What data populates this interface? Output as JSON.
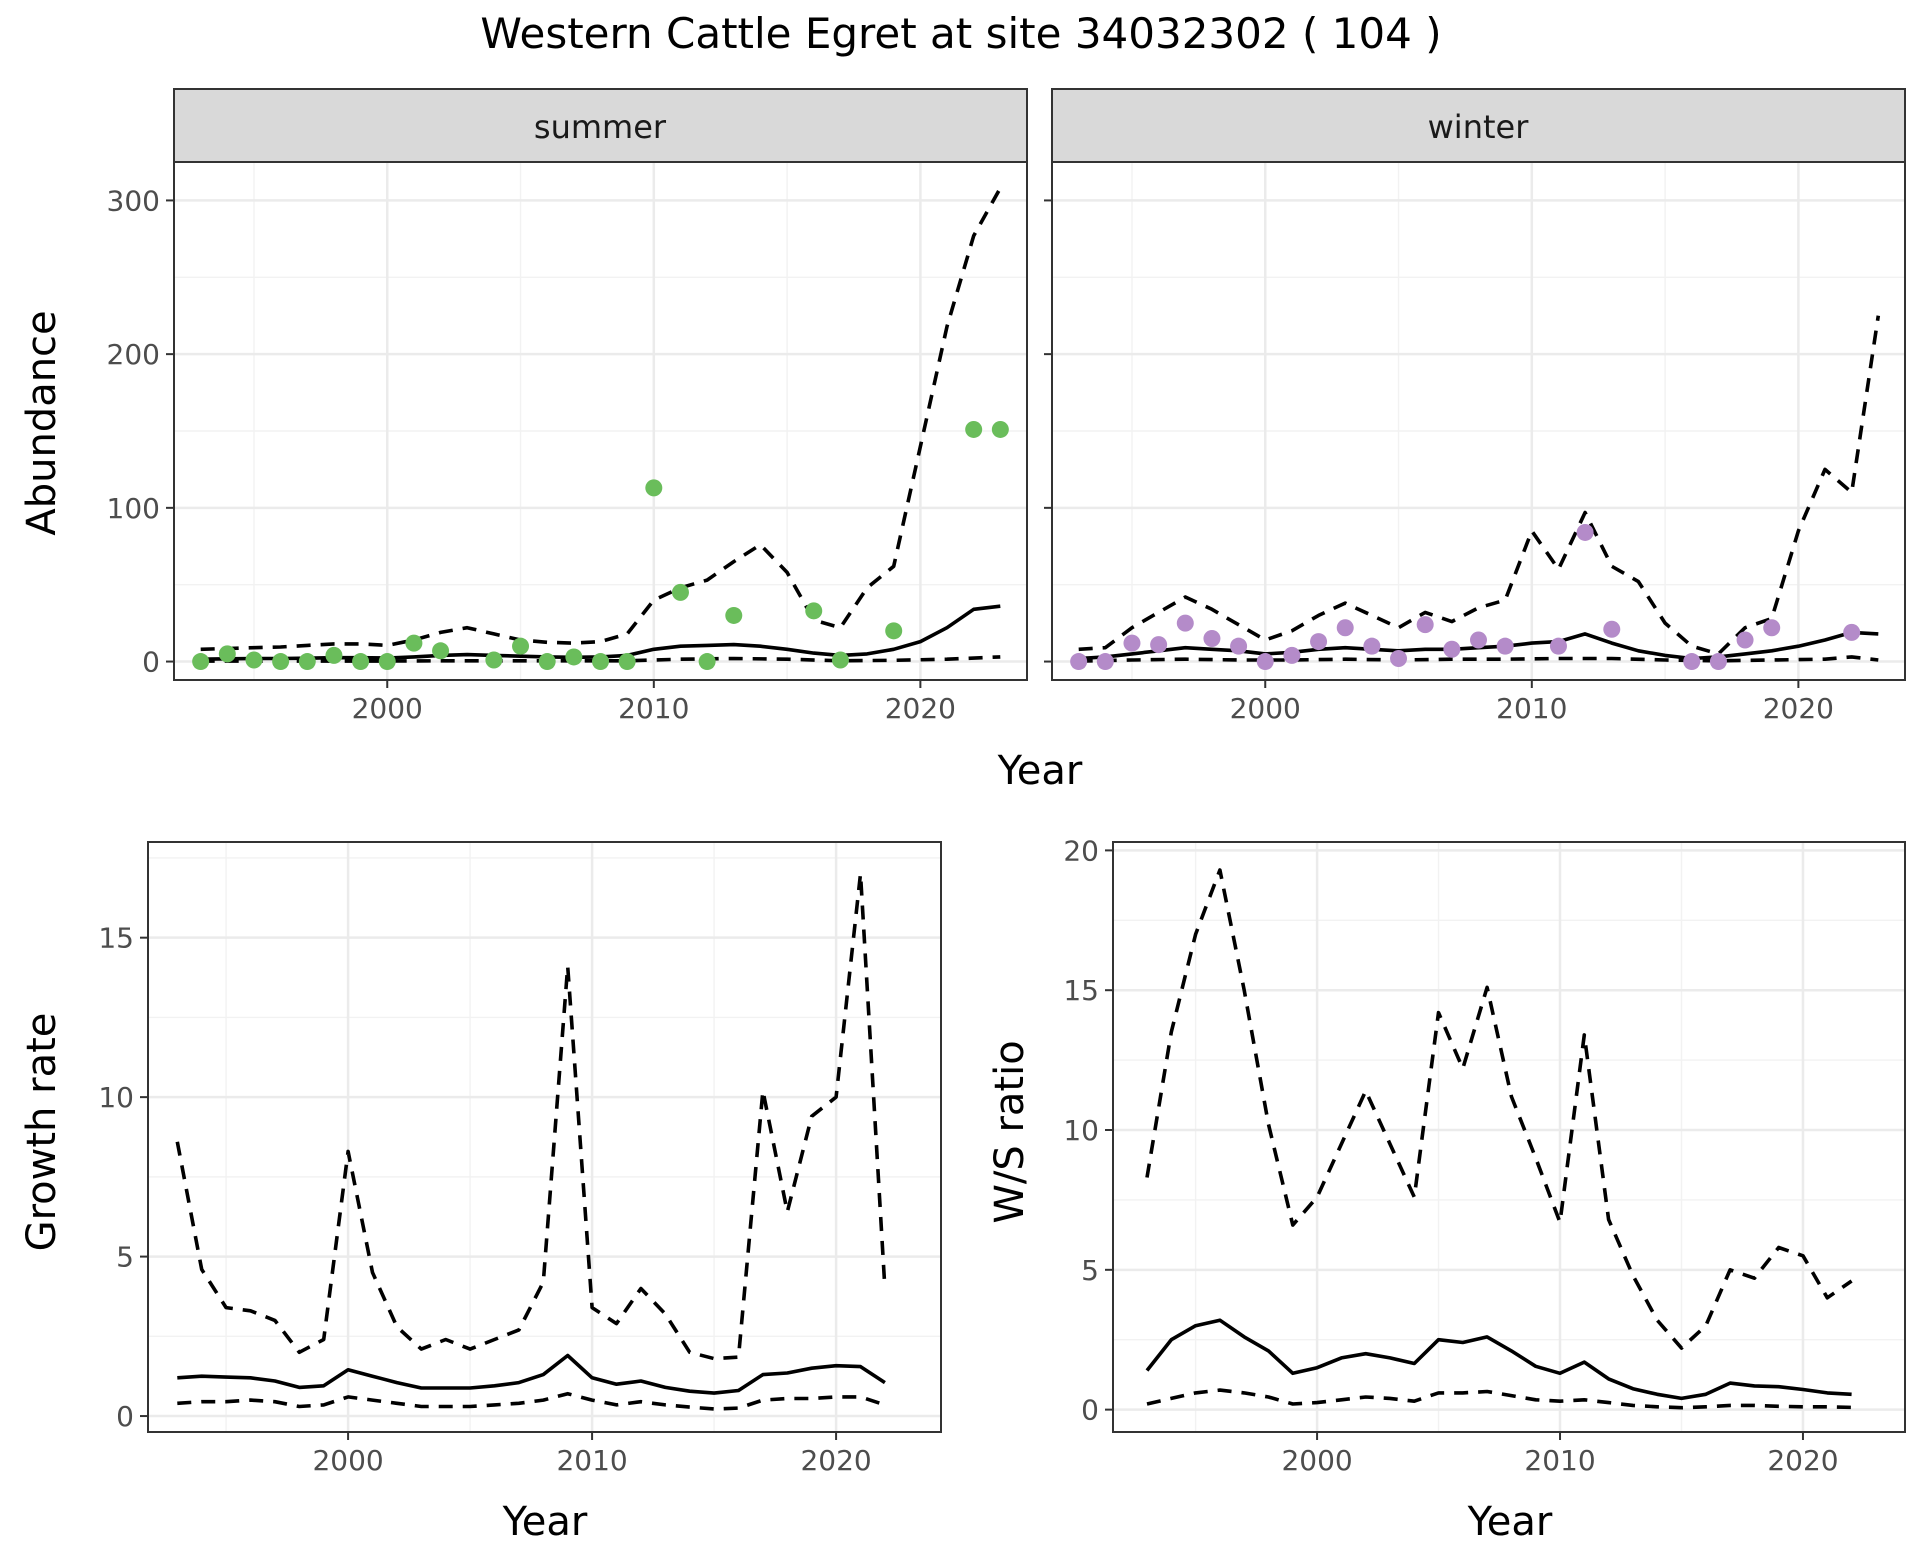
{
  "title": "Western Cattle Egret at site 34032302 ( 104 )",
  "colors": {
    "summer_points": "#6abd5b",
    "winter_points": "#b48bc9",
    "lines": "#000000"
  },
  "chart_data": [
    {
      "id": "abundance",
      "type": "scatter+line",
      "facet_variable": "season",
      "xlabel": "Year",
      "ylabel": "Abundance",
      "xlim": [
        1992,
        2024
      ],
      "ylim": [
        -12,
        325
      ],
      "xticks": [
        2000,
        2010,
        2020
      ],
      "yticks": [
        0,
        100,
        200,
        300
      ],
      "facets": [
        {
          "label": "summer",
          "point_color": "#6abd5b",
          "points": {
            "x": [
              1993,
              1994,
              1995,
              1996,
              1997,
              1998,
              1999,
              2000,
              2001,
              2002,
              2004,
              2005,
              2006,
              2007,
              2008,
              2009,
              2010,
              2011,
              2012,
              2013,
              2016,
              2017,
              2019,
              2022,
              2023
            ],
            "y": [
              0,
              5,
              1,
              0,
              0,
              4,
              0,
              0,
              12,
              7,
              1,
              10,
              0,
              3,
              0,
              0,
              113,
              45,
              0,
              30,
              33,
              1,
              20,
              151,
              151
            ]
          },
          "fit": {
            "x": [
              1993,
              1994,
              1995,
              1996,
              1997,
              1998,
              1999,
              2000,
              2001,
              2002,
              2003,
              2004,
              2005,
              2006,
              2007,
              2008,
              2009,
              2010,
              2011,
              2012,
              2013,
              2014,
              2015,
              2016,
              2017,
              2018,
              2019,
              2020,
              2021,
              2022,
              2023
            ],
            "y": [
              1.5,
              1.8,
              2,
              2,
              2.2,
              2.5,
              2.5,
              2.3,
              3,
              4,
              4.5,
              4,
              3.5,
              3,
              2.8,
              3,
              4,
              8,
              10,
              10.5,
              11,
              10,
              8,
              5.5,
              4,
              5,
              8,
              13,
              22,
              34,
              36
            ]
          },
          "lower": {
            "x": [
              1993,
              1995,
              1997,
              1999,
              2001,
              2003,
              2005,
              2007,
              2009,
              2011,
              2013,
              2015,
              2017,
              2019,
              2021,
              2023
            ],
            "y": [
              0.3,
              0.3,
              0.3,
              0.3,
              0.4,
              0.5,
              0.5,
              0.5,
              0.5,
              1.5,
              2,
              1.5,
              0.5,
              0.8,
              1.5,
              3
            ]
          },
          "upper": {
            "x": [
              1993,
              1994,
              1995,
              1996,
              1997,
              1998,
              1999,
              2000,
              2001,
              2002,
              2003,
              2004,
              2005,
              2006,
              2007,
              2008,
              2009,
              2010,
              2011,
              2012,
              2013,
              2014,
              2015,
              2016,
              2017,
              2018,
              2019,
              2020,
              2021,
              2022,
              2023
            ],
            "y": [
              8,
              8.5,
              9,
              9.5,
              10.5,
              11.5,
              11.5,
              10.5,
              14,
              19,
              22,
              18,
              14,
              12.5,
              12,
              13,
              18,
              40,
              48,
              53,
              65,
              76,
              58,
              27,
              22,
              48,
              62,
              140,
              218,
              277,
              308
            ]
          }
        },
        {
          "label": "winter",
          "point_color": "#b48bc9",
          "points": {
            "x": [
              1993,
              1994,
              1995,
              1996,
              1997,
              1998,
              1999,
              2000,
              2001,
              2002,
              2003,
              2004,
              2005,
              2006,
              2007,
              2008,
              2009,
              2011,
              2012,
              2013,
              2016,
              2017,
              2018,
              2019,
              2022
            ],
            "y": [
              0,
              0,
              12,
              11,
              25,
              15,
              10,
              0,
              4,
              13,
              22,
              10,
              2,
              24,
              8,
              14,
              10,
              10,
              84,
              21,
              0,
              0,
              14,
              22,
              19
            ]
          },
          "fit": {
            "x": [
              1993,
              1994,
              1995,
              1996,
              1997,
              1998,
              1999,
              2000,
              2001,
              2002,
              2003,
              2004,
              2005,
              2006,
              2007,
              2008,
              2009,
              2010,
              2011,
              2012,
              2013,
              2014,
              2015,
              2016,
              2017,
              2018,
              2019,
              2020,
              2021,
              2022,
              2023
            ],
            "y": [
              2,
              3,
              5,
              7,
              9,
              8,
              7,
              5,
              6,
              8,
              9,
              8,
              7,
              8,
              8,
              9,
              10,
              12,
              13,
              18,
              12,
              7,
              4,
              2,
              3,
              5,
              7,
              10,
              14,
              19,
              18
            ]
          },
          "lower": {
            "x": [
              1993,
              1995,
              1997,
              1999,
              2001,
              2003,
              2005,
              2007,
              2009,
              2011,
              2013,
              2015,
              2017,
              2019,
              2021,
              2022,
              2023
            ],
            "y": [
              0.3,
              1,
              1.5,
              1,
              1,
              1.5,
              1,
              1.5,
              1.5,
              2,
              2,
              1,
              0.5,
              1,
              1.5,
              3,
              1
            ]
          },
          "upper": {
            "x": [
              1993,
              1994,
              1995,
              1996,
              1997,
              1998,
              1999,
              2000,
              2001,
              2002,
              2003,
              2004,
              2005,
              2006,
              2007,
              2008,
              2009,
              2010,
              2011,
              2012,
              2013,
              2014,
              2015,
              2016,
              2017,
              2018,
              2019,
              2020,
              2021,
              2022,
              2023
            ],
            "y": [
              8,
              9,
              22,
              32,
              42,
              34,
              24,
              14,
              20,
              30,
              38,
              30,
              22,
              32,
              26,
              35,
              40,
              85,
              60,
              97,
              62,
              52,
              25,
              10,
              5,
              22,
              28,
              85,
              125,
              110,
              225
            ]
          }
        }
      ]
    },
    {
      "id": "growth",
      "type": "line",
      "xlabel": "Year",
      "ylabel": "Growth rate",
      "xlim": [
        1991.8,
        2024.3
      ],
      "ylim": [
        -0.5,
        18
      ],
      "xticks": [
        2000,
        2010,
        2020
      ],
      "yticks": [
        0,
        5,
        10,
        15
      ],
      "fit": {
        "x": [
          1993,
          1994,
          1995,
          1996,
          1997,
          1998,
          1999,
          2000,
          2001,
          2002,
          2003,
          2004,
          2005,
          2006,
          2007,
          2008,
          2009,
          2010,
          2011,
          2012,
          2013,
          2014,
          2015,
          2016,
          2017,
          2018,
          2019,
          2020,
          2021,
          2022
        ],
        "y": [
          1.2,
          1.25,
          1.22,
          1.2,
          1.1,
          0.9,
          0.95,
          1.45,
          1.25,
          1.05,
          0.88,
          0.88,
          0.88,
          0.95,
          1.05,
          1.3,
          1.9,
          1.2,
          1.0,
          1.1,
          0.9,
          0.78,
          0.72,
          0.8,
          1.3,
          1.35,
          1.5,
          1.58,
          1.55,
          1.05
        ]
      },
      "lower": {
        "x": [
          1993,
          1994,
          1995,
          1996,
          1997,
          1998,
          1999,
          2000,
          2001,
          2002,
          2003,
          2004,
          2005,
          2006,
          2007,
          2008,
          2009,
          2010,
          2011,
          2012,
          2013,
          2014,
          2015,
          2016,
          2017,
          2018,
          2019,
          2020,
          2021,
          2022
        ],
        "y": [
          0.4,
          0.45,
          0.45,
          0.5,
          0.45,
          0.3,
          0.35,
          0.6,
          0.5,
          0.4,
          0.3,
          0.3,
          0.3,
          0.35,
          0.4,
          0.5,
          0.7,
          0.5,
          0.35,
          0.45,
          0.35,
          0.28,
          0.22,
          0.25,
          0.5,
          0.55,
          0.55,
          0.6,
          0.6,
          0.35
        ]
      },
      "upper": {
        "x": [
          1993,
          1994,
          1995,
          1996,
          1997,
          1998,
          1999,
          2000,
          2001,
          2002,
          2003,
          2004,
          2005,
          2006,
          2007,
          2008,
          2009,
          2010,
          2011,
          2012,
          2013,
          2014,
          2015,
          2016,
          2017,
          2018,
          2019,
          2020,
          2021,
          2022
        ],
        "y": [
          8.6,
          4.6,
          3.4,
          3.3,
          3.0,
          2.0,
          2.4,
          8.3,
          4.5,
          2.8,
          2.1,
          2.4,
          2.1,
          2.4,
          2.7,
          4.2,
          14.1,
          3.4,
          2.9,
          4.0,
          3.2,
          2.0,
          1.8,
          1.85,
          10.2,
          6.4,
          9.4,
          10.0,
          17.0,
          4.0
        ]
      }
    },
    {
      "id": "ws_ratio",
      "type": "line",
      "xlabel": "Year",
      "ylabel": "W/S ratio",
      "xlim": [
        1991.6,
        2024.2
      ],
      "ylim": [
        -0.8,
        20.3
      ],
      "xticks": [
        2000,
        2010,
        2020
      ],
      "yticks": [
        0,
        5,
        10,
        15,
        20
      ],
      "fit": {
        "x": [
          1993,
          1994,
          1995,
          1996,
          1997,
          1998,
          1999,
          2000,
          2001,
          2002,
          2003,
          2004,
          2005,
          2006,
          2007,
          2008,
          2009,
          2010,
          2011,
          2012,
          2013,
          2014,
          2015,
          2016,
          2017,
          2018,
          2019,
          2020,
          2021,
          2022
        ],
        "y": [
          1.4,
          2.5,
          3.0,
          3.2,
          2.6,
          2.1,
          1.3,
          1.5,
          1.85,
          2.0,
          1.85,
          1.65,
          2.5,
          2.4,
          2.6,
          2.1,
          1.55,
          1.3,
          1.7,
          1.1,
          0.75,
          0.55,
          0.4,
          0.55,
          0.95,
          0.85,
          0.82,
          0.72,
          0.6,
          0.55
        ]
      },
      "lower": {
        "x": [
          1993,
          1994,
          1995,
          1996,
          1997,
          1998,
          1999,
          2000,
          2001,
          2002,
          2003,
          2004,
          2005,
          2006,
          2007,
          2008,
          2009,
          2010,
          2011,
          2012,
          2013,
          2014,
          2015,
          2016,
          2017,
          2018,
          2019,
          2020,
          2021,
          2022
        ],
        "y": [
          0.2,
          0.4,
          0.6,
          0.7,
          0.6,
          0.45,
          0.2,
          0.25,
          0.35,
          0.45,
          0.4,
          0.3,
          0.6,
          0.6,
          0.65,
          0.5,
          0.35,
          0.3,
          0.35,
          0.25,
          0.15,
          0.1,
          0.07,
          0.1,
          0.15,
          0.15,
          0.12,
          0.1,
          0.1,
          0.08
        ]
      },
      "upper": {
        "x": [
          1993,
          1994,
          1995,
          1996,
          1997,
          1998,
          1999,
          2000,
          2001,
          2002,
          2003,
          2004,
          2005,
          2006,
          2007,
          2008,
          2009,
          2010,
          2011,
          2012,
          2013,
          2014,
          2015,
          2016,
          2017,
          2018,
          2019,
          2020,
          2021,
          2022
        ],
        "y": [
          8.3,
          13.5,
          17.0,
          19.3,
          15.0,
          10.2,
          6.6,
          7.6,
          9.5,
          11.4,
          9.5,
          7.6,
          14.2,
          12.2,
          15.1,
          11.2,
          9.0,
          6.7,
          13.4,
          6.8,
          4.8,
          3.2,
          2.2,
          3.0,
          5.0,
          4.7,
          5.8,
          5.5,
          4.0,
          4.6
        ]
      }
    }
  ]
}
